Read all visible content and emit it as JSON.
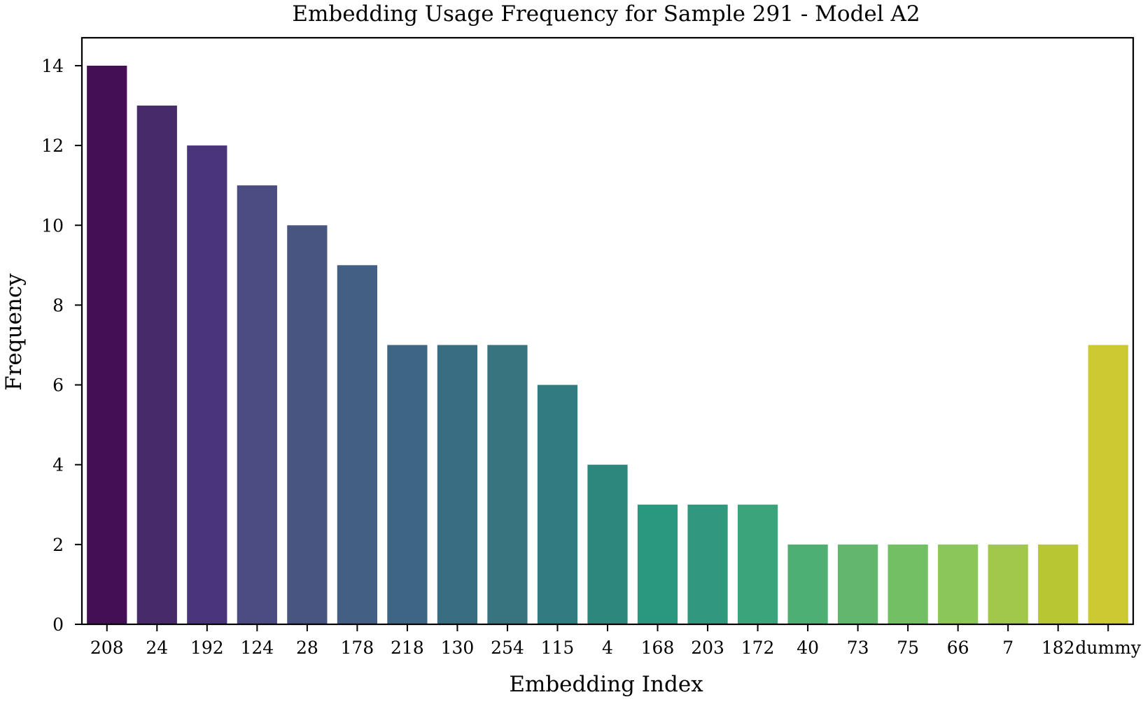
{
  "chart_data": {
    "type": "bar",
    "title": "Embedding Usage Frequency for Sample 291 - Model A2",
    "xlabel": "Embedding Index",
    "ylabel": "Frequency",
    "categories": [
      "208",
      "24",
      "192",
      "124",
      "28",
      "178",
      "218",
      "130",
      "254",
      "115",
      "4",
      "168",
      "203",
      "172",
      "40",
      "73",
      "75",
      "66",
      "7",
      "182",
      "dummy"
    ],
    "values": [
      14,
      13,
      12,
      11,
      10,
      9,
      7,
      7,
      7,
      6,
      4,
      3,
      3,
      3,
      2,
      2,
      2,
      2,
      2,
      2,
      7
    ],
    "colors": [
      "#440f54",
      "#472a6a",
      "#48357a",
      "#4b4c81",
      "#485580",
      "#435f83",
      "#3c6684",
      "#386d82",
      "#377480",
      "#327b80",
      "#2d877d",
      "#2a977f",
      "#30987d",
      "#3ba47a",
      "#4eaf73",
      "#63b76c",
      "#73bf63",
      "#8ac65a",
      "#a1c84a",
      "#b6c733",
      "#cbca30"
    ],
    "ylim": [
      0,
      14.7
    ],
    "yticks": [
      0,
      2,
      4,
      6,
      8,
      10,
      12,
      14
    ],
    "grid": false,
    "legend": "none"
  }
}
